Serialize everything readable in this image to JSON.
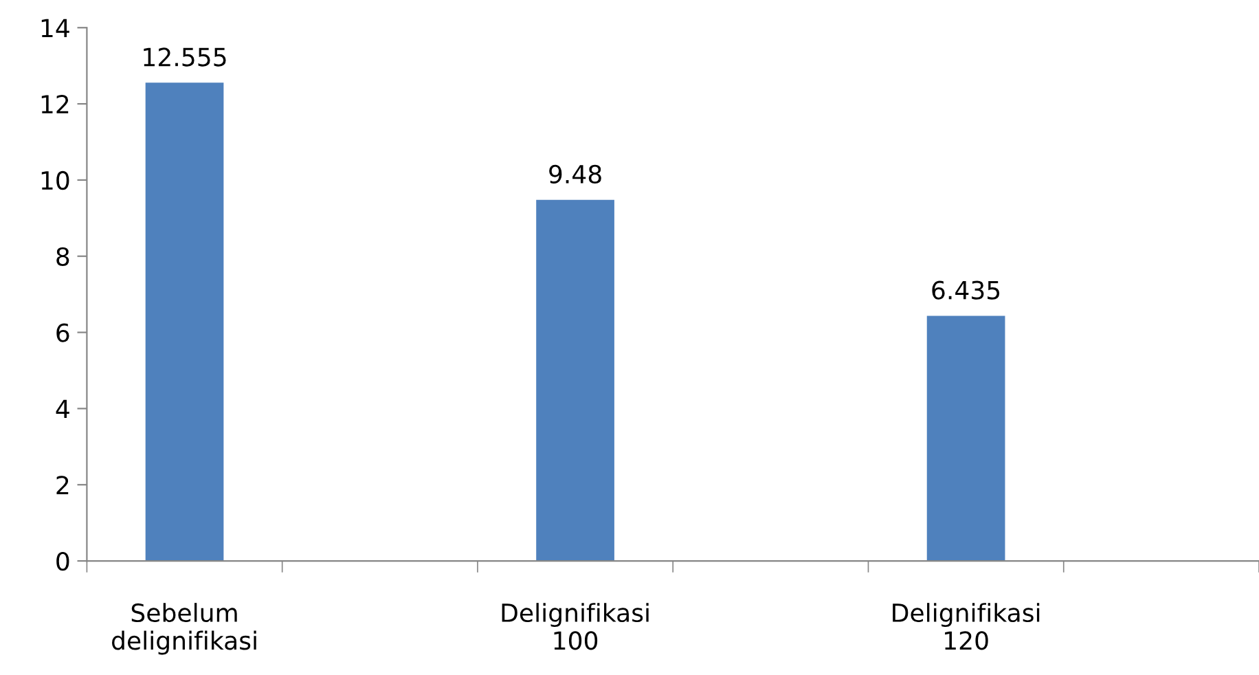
{
  "chart_data": {
    "type": "bar",
    "categories": [
      "Sebelum\ndelignifikasi",
      null,
      "Delignifikasi\n100",
      null,
      "Delignifikasi\n120",
      null
    ],
    "values": [
      12.555,
      null,
      9.48,
      null,
      6.435,
      null
    ],
    "color": "#4f81bd",
    "ylim": [
      0,
      14
    ],
    "yticks": [
      0,
      2,
      4,
      6,
      8,
      10,
      12,
      14
    ],
    "data_labels": true,
    "grid": false,
    "legend": false
  }
}
